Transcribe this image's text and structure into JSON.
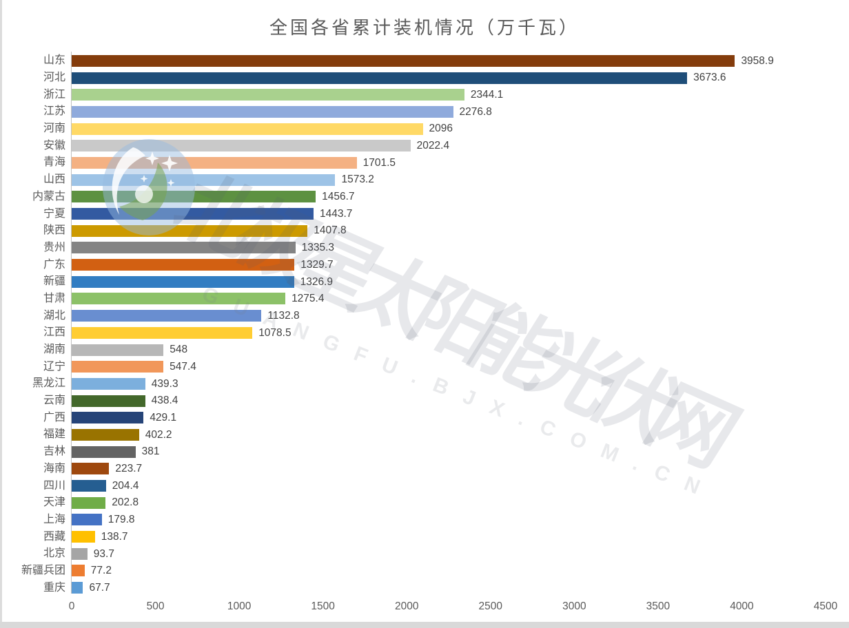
{
  "title": "全国各省累计装机情况（万千瓦）",
  "watermark": {
    "chinese": "北极星太阳能光伏网",
    "latin": "GUANGFU.BJX.COM.CN"
  },
  "x_axis": {
    "ticks": [
      "0",
      "500",
      "1000",
      "1500",
      "2000",
      "2500",
      "3000",
      "3500",
      "4000",
      "4500"
    ]
  },
  "colors": {
    "title_text": "#595959",
    "category_text": "#595959",
    "value_text": "#404040",
    "axis_line": "#bfbfbf"
  },
  "chart_data": {
    "type": "bar",
    "orientation": "horizontal",
    "title": "全国各省累计装机情况（万千瓦）",
    "unit": "万千瓦",
    "categories": [
      "山东",
      "河北",
      "浙江",
      "江苏",
      "河南",
      "安徽",
      "青海",
      "山西",
      "内蒙古",
      "宁夏",
      "陕西",
      "贵州",
      "广东",
      "新疆",
      "甘肃",
      "湖北",
      "江西",
      "湖南",
      "辽宁",
      "黑龙江",
      "云南",
      "广西",
      "福建",
      "吉林",
      "海南",
      "四川",
      "天津",
      "上海",
      "西藏",
      "北京",
      "新疆兵团",
      "重庆"
    ],
    "values": [
      3958.9,
      3673.6,
      2344.1,
      2276.8,
      2096,
      2022.4,
      1701.5,
      1573.2,
      1456.7,
      1443.7,
      1407.8,
      1335.3,
      1329.7,
      1326.9,
      1275.4,
      1132.8,
      1078.5,
      548,
      547.4,
      439.3,
      438.4,
      429.1,
      402.2,
      381,
      223.7,
      204.4,
      202.8,
      179.8,
      138.7,
      93.7,
      77.2,
      67.7
    ],
    "value_labels": [
      "3958.9",
      "3673.6",
      "2344.1",
      "2276.8",
      "2096",
      "2022.4",
      "1701.5",
      "1573.2",
      "1456.7",
      "1443.7",
      "1407.8",
      "1335.3",
      "1329.7",
      "1326.9",
      "1275.4",
      "1132.8",
      "1078.5",
      "548",
      "547.4",
      "439.3",
      "438.4",
      "429.1",
      "402.2",
      "381",
      "223.7",
      "204.4",
      "202.8",
      "179.8",
      "138.7",
      "93.7",
      "77.2",
      "67.7"
    ],
    "bar_colors": [
      "#843C0C",
      "#1F4E79",
      "#A9D18E",
      "#8FAADC",
      "#FFD966",
      "#C9C9C9",
      "#F4B183",
      "#9DC3E6",
      "#5D9141",
      "#335AA1",
      "#CC9A00",
      "#848484",
      "#D26012",
      "#327DC2",
      "#8CC168",
      "#698ED0",
      "#FFCD33",
      "#B7B7B7",
      "#F1975A",
      "#7CAFDD",
      "#43682B",
      "#264478",
      "#997300",
      "#636363",
      "#9E480E",
      "#255E91",
      "#70AD47",
      "#4472C4",
      "#FFC000",
      "#A5A5A5",
      "#ED7D31",
      "#5B9BD5"
    ],
    "xlim": [
      0,
      4500
    ],
    "x_tick_step": 500,
    "x_ticks": [
      0,
      500,
      1000,
      1500,
      2000,
      2500,
      3000,
      3500,
      4000,
      4500
    ],
    "grid": false,
    "legend": false
  }
}
